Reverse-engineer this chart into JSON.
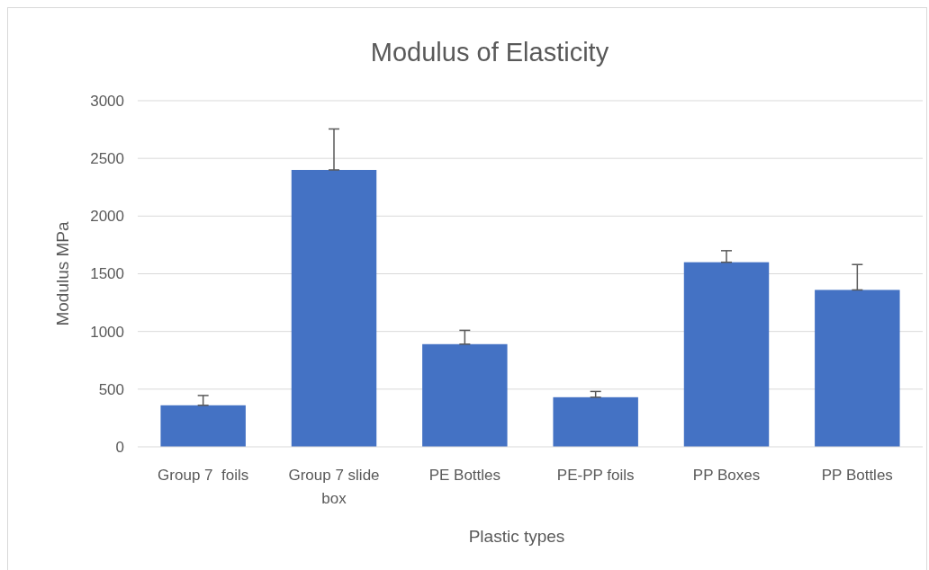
{
  "chart_data": {
    "type": "bar",
    "title": "Modulus of Elasticity",
    "xlabel": "Plastic types",
    "ylabel": "Modulus MPa",
    "categories": [
      "Group 7  foils",
      "Group 7 slide box",
      "PE Bottles",
      "PE-PP foils",
      "PP Boxes",
      "PP Bottles"
    ],
    "values": [
      360,
      2400,
      890,
      430,
      1600,
      1360
    ],
    "errors": [
      [
        360,
        445
      ],
      [
        2400,
        2755
      ],
      [
        890,
        1010
      ],
      [
        430,
        480
      ],
      [
        1600,
        1700
      ],
      [
        1360,
        1580
      ]
    ],
    "color": "#4472c4",
    "ylim": [
      0,
      3000
    ],
    "yticks": [
      0,
      500,
      1000,
      1500,
      2000,
      2500,
      3000
    ],
    "grid": "y"
  }
}
